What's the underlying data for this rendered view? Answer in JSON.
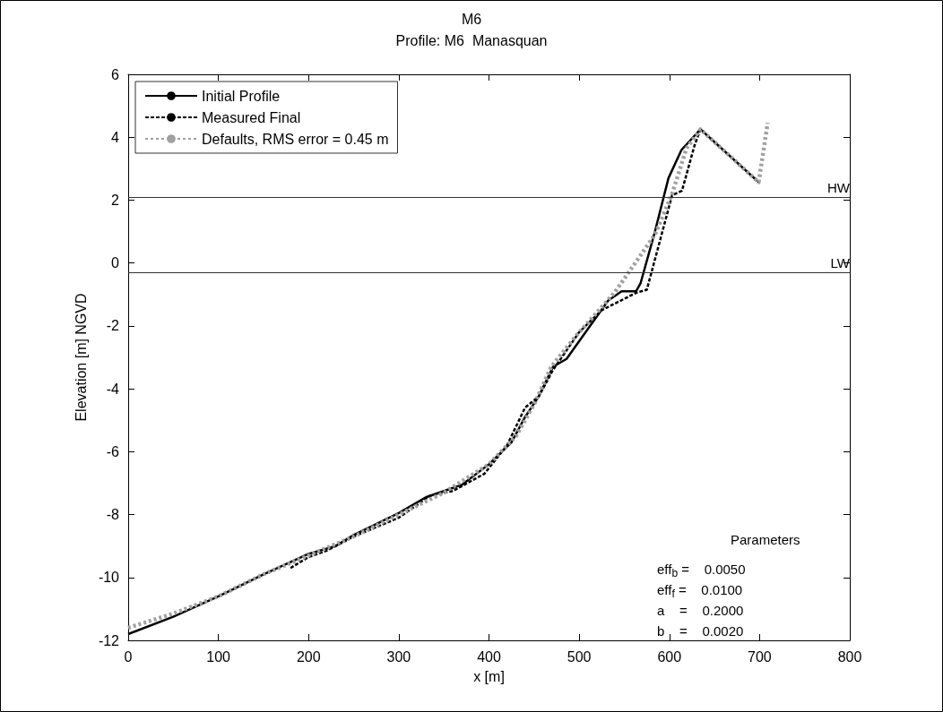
{
  "chart_data": {
    "type": "line",
    "title": "M6",
    "subtitle": "Profile: M6  Manasquan",
    "xlabel": "x [m]",
    "ylabel": "Elevation [m] NGVD",
    "xlim": [
      0,
      800
    ],
    "xticks": [
      0,
      100,
      200,
      300,
      400,
      500,
      600,
      700,
      800
    ],
    "ylim": [
      -12,
      6
    ],
    "yticks": [
      -12,
      -10,
      -8,
      -6,
      -4,
      -2,
      0,
      2,
      4,
      6
    ],
    "legend": "top left",
    "marker": "none",
    "series": [
      {
        "name": "Initial Profile",
        "color": "#000000",
        "line_style": "solid",
        "x": [
          0,
          50,
          100,
          150,
          200,
          230,
          250,
          300,
          330,
          370,
          400,
          425,
          440,
          455,
          471,
          486,
          532,
          547,
          563,
          568,
          584,
          599,
          613.5,
          634.5,
          699
        ],
        "values": [
          -11.8,
          -11.25,
          -10.6,
          -9.9,
          -9.25,
          -9.0,
          -8.65,
          -7.95,
          -7.45,
          -7.05,
          -6.4,
          -5.7,
          -4.9,
          -4.25,
          -3.3,
          -3.05,
          -1.2,
          -0.9,
          -0.9,
          -0.65,
          1.0,
          2.7,
          3.6,
          4.25,
          2.57
        ]
      },
      {
        "name": "Measured Final",
        "color": "#000000",
        "line_style": "dashed",
        "x": [
          180,
          200,
          220,
          250,
          300,
          335,
          360,
          395,
          420,
          440,
          455,
          471,
          500,
          525,
          563,
          575,
          603,
          614,
          628,
          634.5,
          699
        ],
        "values": [
          -9.7,
          -9.35,
          -9.15,
          -8.7,
          -8.1,
          -7.4,
          -7.25,
          -6.7,
          -5.8,
          -4.6,
          -4.25,
          -3.4,
          -2.2,
          -1.5,
          -0.95,
          -0.85,
          2.15,
          2.3,
          3.75,
          4.25,
          2.57
        ]
      },
      {
        "name": "Defaults, RMS error = 0.45 m",
        "color": "#a0a0a0",
        "line_style": "dotted",
        "x": [
          0,
          50,
          100,
          150,
          200,
          250,
          300,
          350,
          400,
          430,
          450,
          469,
          497,
          539,
          584,
          603,
          619,
          634.5,
          699,
          709
        ],
        "values": [
          -11.6,
          -11.15,
          -10.6,
          -9.9,
          -9.3,
          -8.7,
          -8.0,
          -7.3,
          -6.4,
          -5.5,
          -4.5,
          -3.3,
          -2.3,
          -0.95,
          0.9,
          2.2,
          3.65,
          4.25,
          2.57,
          4.46
        ]
      }
    ],
    "ref_lines": [
      {
        "axis": "y",
        "value": 2.1,
        "label": "HW"
      },
      {
        "axis": "y",
        "value": -0.3,
        "label": "LW"
      }
    ],
    "annotations": [
      "Parameters",
      "eff$_{b}$ =    0.0050",
      "eff$_{f}$ =    0.0100",
      "a    =    0.2000",
      "b    =    0.0020"
    ]
  }
}
